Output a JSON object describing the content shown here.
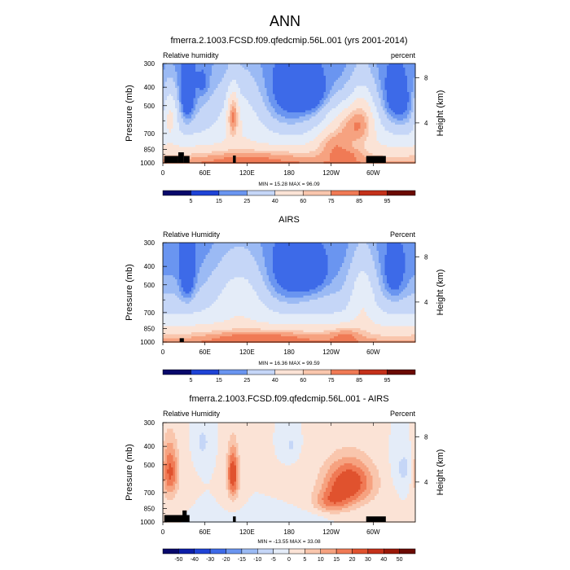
{
  "figure": {
    "title": "ANN"
  },
  "chart_data": [
    {
      "type": "heatmap",
      "title": "fmerra.2.1003.FCSD.f09.qfedcmip.56L.001 (yrs 2001-2014)",
      "left_label": "Relative humidity",
      "right_label": "percent",
      "ylabel": "Pressure (mb)",
      "ylabel_right": "Height (km)",
      "yticks": [
        "300",
        "400",
        "500",
        "700",
        "850",
        "1000"
      ],
      "yticks_right": [
        "8",
        "4"
      ],
      "xticks": [
        "0",
        "60E",
        "120E",
        "180",
        "120W",
        "60W"
      ],
      "x_range_deg_east": [
        0,
        360
      ],
      "y_range_mb": [
        1000,
        300
      ],
      "stats": "MIN = 15.28  MAX = 96.09",
      "min": 15.28,
      "max": 96.09,
      "colorbar_ticks": [
        "5",
        "15",
        "25",
        "40",
        "60",
        "75",
        "85",
        "95"
      ]
    },
    {
      "type": "heatmap",
      "title": "AIRS",
      "left_label": "Relative Humidity",
      "right_label": "Percent",
      "ylabel": "Pressure (mb)",
      "ylabel_right": "Height (km)",
      "yticks": [
        "300",
        "400",
        "500",
        "700",
        "850",
        "1000"
      ],
      "yticks_right": [
        "8",
        "4"
      ],
      "xticks": [
        "0",
        "60E",
        "120E",
        "180",
        "120W",
        "60W"
      ],
      "x_range_deg_east": [
        0,
        360
      ],
      "y_range_mb": [
        1000,
        300
      ],
      "stats": "MIN = 16.36  MAX = 99.59",
      "min": 16.36,
      "max": 99.59,
      "colorbar_ticks": [
        "5",
        "15",
        "25",
        "40",
        "60",
        "75",
        "85",
        "95"
      ]
    },
    {
      "type": "heatmap",
      "title": "fmerra.2.1003.FCSD.f09.qfedcmip.56L.001 - AIRS",
      "left_label": "Relative Humidity",
      "right_label": "Percent",
      "ylabel": "Pressure (mb)",
      "ylabel_right": "Height (km)",
      "yticks": [
        "300",
        "400",
        "500",
        "700",
        "850",
        "1000"
      ],
      "yticks_right": [
        "8",
        "4"
      ],
      "xticks": [
        "0",
        "60E",
        "120E",
        "180",
        "120W",
        "60W"
      ],
      "x_range_deg_east": [
        0,
        360
      ],
      "y_range_mb": [
        1000,
        300
      ],
      "stats": "MIN = -13.55  MAX = 33.08",
      "min": -13.55,
      "max": 33.08,
      "colorbar_ticks": [
        "-50",
        "-40",
        "-30",
        "-20",
        "-15",
        "-10",
        "-5",
        "0",
        "5",
        "10",
        "15",
        "20",
        "30",
        "40",
        "50"
      ]
    }
  ],
  "colors": {
    "cmap": [
      "#08086b",
      "#0c1ea8",
      "#1f43d6",
      "#3d6ae8",
      "#6a95f0",
      "#9bbaf4",
      "#c5d6f7",
      "#e4ecf8",
      "#fbe3d6",
      "#f9c6ad",
      "#f6a280",
      "#f07a55",
      "#e0522e",
      "#c4311a",
      "#9a1808",
      "#6b0a02"
    ],
    "mask": "#000000"
  }
}
